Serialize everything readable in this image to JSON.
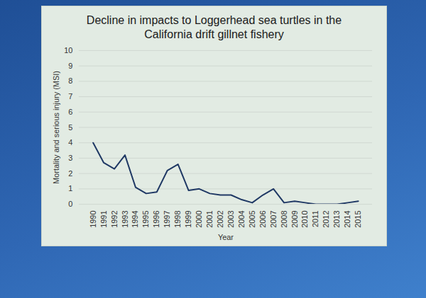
{
  "chart_data": {
    "type": "line",
    "title": "Decline in impacts to Loggerhead sea turtles in the California drift gillnet fishery",
    "x_label": "Year",
    "y_label": "Mortality and serious injury (MSI)",
    "categories": [
      "1990",
      "1991",
      "1992",
      "1993",
      "1994",
      "1995",
      "1996",
      "1997",
      "1998",
      "1999",
      "2000",
      "2001",
      "2002",
      "2003",
      "2004",
      "2005",
      "2006",
      "2007",
      "2008",
      "2009",
      "2010",
      "2011",
      "2012",
      "2013",
      "2014",
      "2015"
    ],
    "values": [
      4.0,
      2.7,
      2.3,
      3.2,
      1.1,
      0.7,
      0.8,
      2.2,
      2.6,
      0.9,
      1.0,
      0.7,
      0.6,
      0.6,
      0.3,
      0.1,
      0.6,
      1.0,
      0.1,
      0.2,
      0.1,
      0.0,
      0.0,
      0.0,
      0.1,
      0.2
    ],
    "color": "#1f3864",
    "ylim": [
      0,
      10
    ],
    "yticks": [
      0,
      1,
      2,
      3,
      4,
      5,
      6,
      7,
      8,
      9,
      10
    ],
    "grid": true
  }
}
